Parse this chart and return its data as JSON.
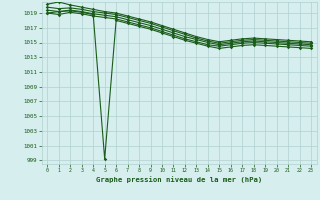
{
  "title": "Graphe pression niveau de la mer (hPa)",
  "xlim": [
    -0.5,
    23.5
  ],
  "ylim": [
    998.5,
    1020.5
  ],
  "yticks": [
    999,
    1001,
    1003,
    1005,
    1007,
    1009,
    1011,
    1013,
    1015,
    1017,
    1019
  ],
  "xticks": [
    0,
    1,
    2,
    3,
    4,
    5,
    6,
    7,
    8,
    9,
    10,
    11,
    12,
    13,
    14,
    15,
    16,
    17,
    18,
    19,
    20,
    21,
    22,
    23
  ],
  "background_color": "#d6eeee",
  "grid_color": "#b0d0d0",
  "line_color": "#1a5c1a",
  "markersize": 1.8,
  "series": [
    [
      1020.2,
      1020.5,
      1020.1,
      1019.8,
      1019.5,
      1019.2,
      1019.0,
      1018.6,
      1018.2,
      1017.8,
      1017.3,
      1016.8,
      1016.3,
      1015.8,
      1015.4,
      1015.1,
      1015.3,
      1015.5,
      1015.6,
      1015.5,
      1015.4,
      1015.3,
      1015.2,
      1015.1
    ],
    [
      1019.8,
      1019.6,
      1019.7,
      1019.5,
      1019.2,
      1019.0,
      1018.8,
      1018.4,
      1018.0,
      1017.6,
      1017.1,
      1016.6,
      1016.1,
      1015.6,
      1015.2,
      1014.9,
      1015.1,
      1015.3,
      1015.4,
      1015.3,
      1015.2,
      1015.1,
      1015.0,
      1014.9
    ],
    [
      1019.4,
      1019.2,
      1019.4,
      1019.2,
      1018.9,
      1018.7,
      1018.5,
      1018.1,
      1017.7,
      1017.3,
      1016.8,
      1016.3,
      1015.8,
      1015.4,
      1015.0,
      1014.7,
      1014.9,
      1015.1,
      1015.2,
      1015.1,
      1015.0,
      1014.9,
      1014.8,
      1014.7
    ],
    [
      1019.0,
      1018.8,
      1019.1,
      1018.9,
      1018.6,
      1018.4,
      1018.2,
      1017.8,
      1017.4,
      1017.0,
      1016.5,
      1016.0,
      1015.5,
      1015.1,
      1014.7,
      1014.5,
      1014.7,
      1014.9,
      1015.0,
      1014.9,
      1014.8,
      1014.7,
      1014.6,
      1014.5
    ],
    [
      1019.0,
      1019.2,
      1019.3,
      1019.1,
      1018.8,
      999.2,
      1018.0,
      1017.6,
      1017.2,
      1016.8,
      1016.3,
      1015.8,
      1015.3,
      1014.9,
      1014.5,
      1014.2,
      1014.4,
      1014.6,
      1014.7,
      1014.6,
      1014.5,
      1014.4,
      1014.3,
      1014.2
    ]
  ],
  "lw": 0.8
}
